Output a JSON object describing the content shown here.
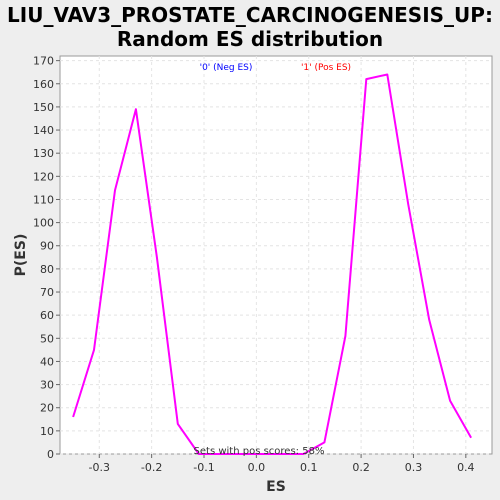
{
  "chart_data": {
    "type": "line",
    "title_lines": [
      "LIU_VAV3_PROSTATE_CARCINOGENESIS_UP:",
      "Random ES distribution"
    ],
    "xlabel": "ES",
    "ylabel": "P(ES)",
    "xlim": [
      -0.375,
      0.45
    ],
    "ylim": [
      0,
      172
    ],
    "x_ticks": [
      -0.3,
      -0.2,
      -0.1,
      0.0,
      0.1,
      0.2,
      0.3,
      0.4
    ],
    "x_tick_labels": [
      "-0.3",
      "-0.2",
      "-0.1",
      "0.0",
      "0.1",
      "0.2",
      "0.3",
      "0.4"
    ],
    "y_ticks": [
      0,
      10,
      20,
      30,
      40,
      50,
      60,
      70,
      80,
      90,
      100,
      110,
      120,
      130,
      140,
      150,
      160,
      170
    ],
    "y_tick_labels": [
      "0",
      "10",
      "20",
      "30",
      "40",
      "50",
      "60",
      "70",
      "80",
      "90",
      "100",
      "110",
      "120",
      "130",
      "140",
      "150",
      "160",
      "170"
    ],
    "grid": true,
    "legend": [
      {
        "label": "'0' (Neg ES)",
        "color": "#0000ff"
      },
      {
        "label": "'1' (Pos ES)",
        "color": "#ff0000"
      }
    ],
    "legend_position": "top",
    "series": [
      {
        "color": "#ff00ff",
        "x": [
          -0.35,
          -0.31,
          -0.27,
          -0.23,
          -0.19,
          -0.15,
          -0.11,
          -0.07,
          -0.03,
          0.01,
          0.05,
          0.09,
          0.13,
          0.17,
          0.21,
          0.25,
          0.29,
          0.33,
          0.37,
          0.41
        ],
        "y": [
          16,
          45,
          114,
          149,
          85,
          13,
          0,
          0,
          0,
          0,
          0,
          0,
          5,
          51,
          162,
          164,
          108,
          58,
          23,
          7
        ]
      }
    ],
    "annotation": "Sets with pos scores: 58%"
  }
}
